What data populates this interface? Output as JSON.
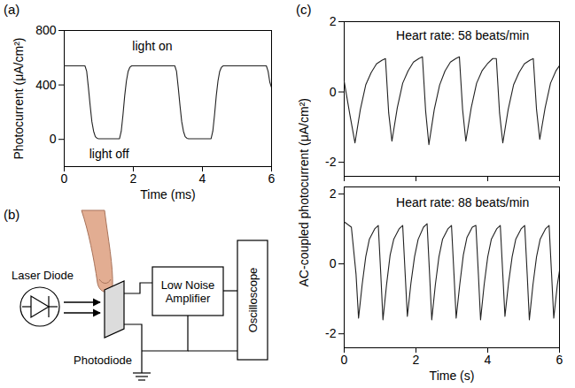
{
  "chart_data": [
    {
      "type": "line",
      "panel": "(a)",
      "xlabel": "Time (ms)",
      "ylabel": "Photocurrent (μA/cm²)",
      "color": "#222222",
      "xlim": [
        0,
        6
      ],
      "xticks": [
        0,
        2,
        4,
        6
      ],
      "ylim": [
        -200,
        800
      ],
      "yticks": [
        0,
        400,
        800
      ],
      "annotations": [
        {
          "text": "light on",
          "x": 2.55,
          "y": 680
        },
        {
          "text": "light off",
          "x": 1.3,
          "y": -110
        }
      ],
      "x": [
        0,
        0.6,
        0.65,
        0.7,
        0.75,
        0.8,
        0.85,
        0.9,
        0.95,
        1.0,
        1.6,
        1.65,
        1.7,
        1.75,
        1.8,
        1.85,
        1.9,
        1.95,
        3.2,
        3.25,
        3.3,
        3.35,
        3.4,
        3.45,
        3.5,
        3.55,
        3.6,
        4.25,
        4.3,
        4.35,
        4.4,
        4.45,
        4.5,
        4.55,
        4.6,
        5.85,
        5.9,
        5.95,
        6.0
      ],
      "values": [
        540,
        540,
        500,
        380,
        250,
        130,
        60,
        20,
        8,
        5,
        5,
        60,
        180,
        320,
        430,
        500,
        530,
        540,
        540,
        500,
        380,
        250,
        130,
        60,
        20,
        8,
        5,
        5,
        60,
        180,
        320,
        430,
        500,
        530,
        540,
        540,
        500,
        420,
        380
      ]
    },
    {
      "type": "line",
      "panel": "(c)",
      "ylabel": "AC-coupled photocurrent (μA/cm²)",
      "color": "#222222",
      "tick_labels": "y",
      "xlim": [
        0,
        6
      ],
      "xticks": [
        0,
        2,
        4,
        6
      ],
      "ylim": [
        -2.4,
        2
      ],
      "yticks": [
        -2,
        0,
        2
      ],
      "annotations": [
        {
          "text": "Heart rate: 58 beats/min",
          "x": 3.3,
          "y": 1.6
        }
      ],
      "x": [
        0,
        0.15,
        0.3,
        0.45,
        0.6,
        0.75,
        0.9,
        1.05,
        1.15,
        1.24,
        1.33,
        1.48,
        1.63,
        1.78,
        1.93,
        2.08,
        2.18,
        2.27,
        2.36,
        2.51,
        2.66,
        2.81,
        2.96,
        3.11,
        3.21,
        3.3,
        3.39,
        3.54,
        3.69,
        3.84,
        3.99,
        4.14,
        4.24,
        4.33,
        4.42,
        4.57,
        4.72,
        4.87,
        5.02,
        5.17,
        5.27,
        5.36,
        5.45,
        5.6,
        5.75,
        5.9,
        6
      ],
      "values": [
        0.3,
        -0.6,
        -1.45,
        -0.5,
        0.2,
        0.55,
        0.8,
        0.9,
        0.95,
        -0.6,
        -1.4,
        -0.45,
        0.25,
        0.6,
        0.85,
        0.95,
        1,
        -0.55,
        -1.5,
        -0.5,
        0.2,
        0.6,
        0.85,
        0.95,
        1,
        -0.5,
        -1.4,
        -0.45,
        0.25,
        0.6,
        0.8,
        0.95,
        0.95,
        -0.6,
        -1.45,
        -0.5,
        0.2,
        0.55,
        0.8,
        0.9,
        0.95,
        -0.5,
        -1.35,
        -0.45,
        0.25,
        0.6,
        0.75
      ]
    },
    {
      "type": "line",
      "xlabel": "Time (s)",
      "color": "#222222",
      "xlim": [
        0,
        6
      ],
      "xticks": [
        0,
        2,
        4,
        6
      ],
      "ylim": [
        -2.4,
        2.2
      ],
      "yticks": [
        -2,
        0,
        2
      ],
      "annotations": [
        {
          "text": "Heart rate: 88 beats/min",
          "x": 3.3,
          "y": 1.75
        }
      ],
      "x": [
        0,
        0.2,
        0.33,
        0.4,
        0.5,
        0.6,
        0.7,
        0.85,
        0.95,
        1.02,
        1.08,
        1.18,
        1.28,
        1.38,
        1.53,
        1.63,
        1.7,
        1.76,
        1.86,
        1.96,
        2.06,
        2.21,
        2.31,
        2.38,
        2.44,
        2.54,
        2.64,
        2.74,
        2.89,
        2.99,
        3.06,
        3.12,
        3.22,
        3.32,
        3.42,
        3.57,
        3.67,
        3.74,
        3.8,
        3.9,
        4,
        4.1,
        4.25,
        4.35,
        4.42,
        4.48,
        4.58,
        4.68,
        4.78,
        4.93,
        5.03,
        5.1,
        5.16,
        5.26,
        5.36,
        5.46,
        5.61,
        5.71,
        5.78,
        5.84,
        5.94,
        6
      ],
      "values": [
        1.2,
        1.05,
        -0.3,
        -1.55,
        -0.6,
        0.2,
        0.7,
        1,
        1.1,
        -0.3,
        -1.6,
        -0.6,
        0.25,
        0.7,
        1,
        1.1,
        -0.3,
        -1.5,
        -0.55,
        0.2,
        0.7,
        1.05,
        1.15,
        -0.3,
        -1.6,
        -0.6,
        0.2,
        0.7,
        1,
        1.1,
        -0.3,
        -1.55,
        -0.6,
        0.25,
        0.75,
        1.05,
        1.1,
        -0.3,
        -1.6,
        -0.6,
        0.2,
        0.7,
        1,
        1.1,
        -0.3,
        -1.5,
        -0.55,
        0.2,
        0.7,
        1,
        1.1,
        -0.3,
        -1.6,
        -0.6,
        0.2,
        0.7,
        1,
        1.1,
        -0.3,
        -1.55,
        -0.6,
        -0.2
      ]
    }
  ],
  "diagram": {
    "panel": "(b)",
    "nodes": [
      {
        "label": "Laser Diode"
      },
      {
        "label": "Photodiode"
      },
      {
        "label": "Low Noise Amplifier"
      },
      {
        "label": "Oscilloscope"
      }
    ]
  }
}
